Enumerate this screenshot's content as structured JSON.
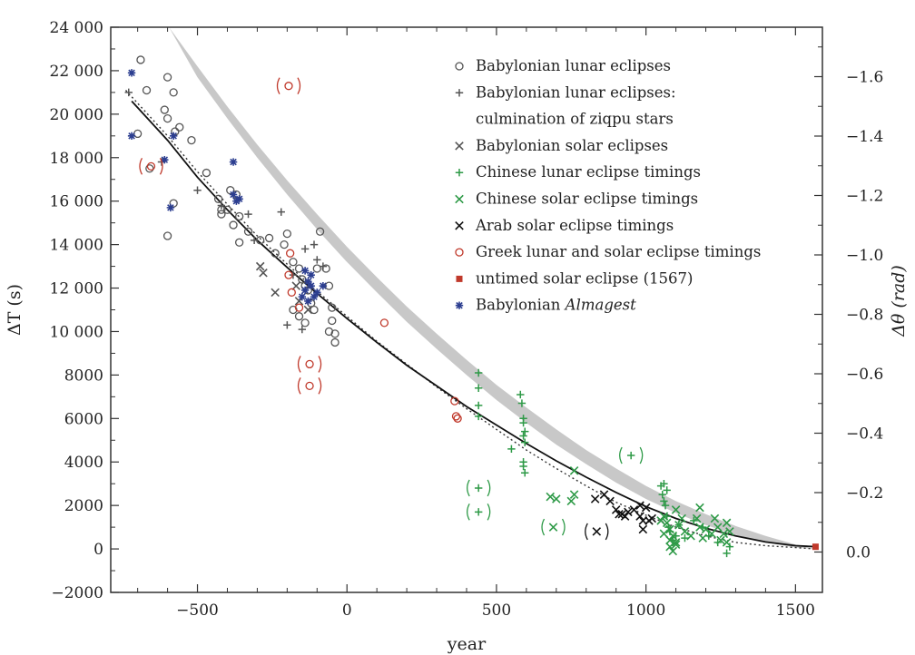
{
  "chart_data": {
    "type": "scatter",
    "xlabel": "year",
    "ylabel": "ΔT (s)",
    "y2label": "Δθ (rad)",
    "xlim": [
      -790,
      1590
    ],
    "ylim": [
      -2000,
      24000
    ],
    "y2lim": [
      0.1359,
      -1.7664
    ],
    "x_ticks": [
      -500,
      0,
      500,
      1000,
      1500
    ],
    "x_tick_labels": [
      "−500",
      "0",
      "500",
      "1000",
      "1500"
    ],
    "y_ticks": [
      -2000,
      0,
      2000,
      4000,
      6000,
      8000,
      10000,
      12000,
      14000,
      16000,
      18000,
      20000,
      22000,
      24000
    ],
    "y_tick_labels": [
      "−2000",
      "0",
      "2000",
      "4000",
      "6000",
      "8000",
      "10 000",
      "12 000",
      "14 000",
      "16 000",
      "18 000",
      "20 000",
      "22 000",
      "24 000"
    ],
    "y2_ticks": [
      0.0,
      -0.2,
      -0.4,
      -0.6,
      -0.8,
      -1.0,
      -1.2,
      -1.4,
      -1.6
    ],
    "y2_tick_labels": [
      "0.0",
      "−0.2",
      "−0.4",
      "−0.6",
      "−0.8",
      "−1.0",
      "−1.2",
      "−1.4",
      "−1.6"
    ],
    "grid": false,
    "legend_position": "top-right",
    "fit_curve": {
      "style": "solid",
      "color": "#111111",
      "x": [
        -720,
        -600,
        -500,
        -400,
        -300,
        -200,
        -100,
        0,
        100,
        200,
        300,
        400,
        500,
        600,
        700,
        800,
        900,
        1000,
        1100,
        1200,
        1300,
        1400,
        1500,
        1570
      ],
      "y": [
        20600,
        18800,
        17100,
        15600,
        14200,
        12950,
        11750,
        10600,
        9500,
        8450,
        7500,
        6550,
        5700,
        4850,
        4050,
        3300,
        2600,
        1950,
        1400,
        950,
        600,
        320,
        150,
        100
      ]
    },
    "dotted_curve": {
      "style": "dotted",
      "color": "#333333",
      "x": [
        -740,
        -600,
        -500,
        -400,
        -300,
        -200,
        -100,
        0,
        100,
        200,
        300,
        400,
        500,
        600,
        700,
        800,
        900,
        1000,
        1100,
        1200,
        1300,
        1400,
        1500,
        1570
      ],
      "y": [
        21100,
        19000,
        17350,
        15850,
        14400,
        13100,
        11850,
        10700,
        9550,
        8500,
        7450,
        6450,
        5500,
        4550,
        3700,
        2900,
        2150,
        1550,
        1000,
        600,
        300,
        150,
        60,
        0
      ]
    },
    "shaded_band": {
      "color": "#c8c8c8",
      "x": [
        -595,
        -500,
        -400,
        -300,
        -200,
        -100,
        0,
        100,
        200,
        300,
        400,
        500,
        600,
        700,
        800,
        900,
        1000,
        1100,
        1200,
        1300,
        1400,
        1500,
        1570
      ],
      "upper": [
        24000,
        22200,
        20350,
        18600,
        16950,
        15400,
        13900,
        12500,
        11150,
        9900,
        8700,
        7550,
        6500,
        5500,
        4550,
        3700,
        2900,
        2200,
        1600,
        1050,
        600,
        200,
        0
      ],
      "lower": [
        24000,
        21700,
        19800,
        18000,
        16300,
        14700,
        13200,
        11800,
        10450,
        9200,
        8000,
        6850,
        5800,
        4800,
        3900,
        3050,
        2300,
        1650,
        1100,
        650,
        300,
        60,
        0
      ]
    },
    "series": [
      {
        "name": "Babylonian lunar eclipses",
        "marker": "circle",
        "color": "#555555",
        "points": [
          [
            -690,
            22500
          ],
          [
            -670,
            21100
          ],
          [
            -600,
            21700
          ],
          [
            -580,
            21000
          ],
          [
            -575,
            19200
          ],
          [
            -560,
            19400
          ],
          [
            -520,
            18800
          ],
          [
            -700,
            19100
          ],
          [
            -660,
            17500
          ],
          [
            -610,
            20200
          ],
          [
            -600,
            19800
          ],
          [
            -470,
            17300
          ],
          [
            -430,
            16100
          ],
          [
            -420,
            15600
          ],
          [
            -390,
            16500
          ],
          [
            -370,
            16300
          ],
          [
            -360,
            15300
          ],
          [
            -380,
            14900
          ],
          [
            -360,
            14100
          ],
          [
            -330,
            14600
          ],
          [
            -290,
            14200
          ],
          [
            -260,
            14300
          ],
          [
            -240,
            13600
          ],
          [
            -210,
            14000
          ],
          [
            -200,
            14500
          ],
          [
            -180,
            13200
          ],
          [
            -160,
            12900
          ],
          [
            -150,
            12400
          ],
          [
            -140,
            12100
          ],
          [
            -130,
            11900
          ],
          [
            -120,
            11300
          ],
          [
            -110,
            11000
          ],
          [
            -100,
            12900
          ],
          [
            -90,
            14600
          ],
          [
            -70,
            12900
          ],
          [
            -60,
            12100
          ],
          [
            -50,
            11100
          ],
          [
            -50,
            10500
          ],
          [
            -60,
            10000
          ],
          [
            -40,
            9900
          ],
          [
            -40,
            9500
          ],
          [
            -580,
            15900
          ],
          [
            -600,
            14400
          ],
          [
            -400,
            15600
          ],
          [
            -420,
            15400
          ],
          [
            -180,
            11000
          ],
          [
            -160,
            10700
          ],
          [
            -140,
            10400
          ]
        ]
      },
      {
        "name": "Babylonian lunar eclipses: culmination of ziqpu stars",
        "marker": "plus",
        "color": "#555555",
        "points": [
          [
            -730,
            21000
          ],
          [
            -620,
            17800
          ],
          [
            -500,
            16500
          ],
          [
            -420,
            15800
          ],
          [
            -330,
            15400
          ],
          [
            -310,
            14200
          ],
          [
            -220,
            15500
          ],
          [
            -180,
            12600
          ],
          [
            -140,
            13800
          ],
          [
            -110,
            14000
          ],
          [
            -100,
            13300
          ],
          [
            -80,
            13000
          ],
          [
            -200,
            10300
          ],
          [
            -150,
            10100
          ]
        ]
      },
      {
        "name": "Babylonian solar eclipses",
        "marker": "x",
        "color": "#555555",
        "points": [
          [
            -290,
            13000
          ],
          [
            -280,
            12700
          ],
          [
            -240,
            11800
          ],
          [
            -170,
            12100
          ],
          [
            -160,
            11400
          ],
          [
            -130,
            11000
          ]
        ]
      },
      {
        "name": "Chinese lunar eclipse timings",
        "marker": "plus",
        "color": "#2e9a47",
        "points": [
          [
            440,
            8100
          ],
          [
            440,
            7400
          ],
          [
            440,
            6600
          ],
          [
            440,
            6100
          ],
          [
            550,
            4600
          ],
          [
            580,
            7100
          ],
          [
            585,
            6700
          ],
          [
            590,
            6000
          ],
          [
            590,
            5800
          ],
          [
            595,
            5400
          ],
          [
            590,
            5200
          ],
          [
            595,
            4900
          ],
          [
            590,
            4000
          ],
          [
            590,
            3800
          ],
          [
            595,
            3500
          ],
          [
            1050,
            2900
          ],
          [
            1055,
            2500
          ],
          [
            1060,
            2200
          ],
          [
            1065,
            2000
          ],
          [
            1070,
            1500
          ],
          [
            1075,
            1000
          ],
          [
            1080,
            800
          ],
          [
            1090,
            400
          ],
          [
            1100,
            600
          ],
          [
            1110,
            1100
          ],
          [
            1130,
            500
          ],
          [
            1160,
            1300
          ],
          [
            1190,
            1000
          ],
          [
            1210,
            600
          ],
          [
            1240,
            300
          ],
          [
            1270,
            -200
          ],
          [
            1280,
            100
          ],
          [
            1060,
            3000
          ],
          [
            1070,
            2700
          ]
        ]
      },
      {
        "name": "Chinese solar eclipse timings",
        "marker": "x",
        "color": "#2e9a47",
        "points": [
          [
            680,
            2400
          ],
          [
            700,
            2300
          ],
          [
            750,
            2200
          ],
          [
            760,
            2500
          ],
          [
            760,
            3600
          ],
          [
            1050,
            1300
          ],
          [
            1060,
            1500
          ],
          [
            1060,
            700
          ],
          [
            1070,
            1200
          ],
          [
            1080,
            900
          ],
          [
            1080,
            400
          ],
          [
            1090,
            600
          ],
          [
            1100,
            300
          ],
          [
            1100,
            1800
          ],
          [
            1110,
            1100
          ],
          [
            1120,
            1400
          ],
          [
            1130,
            800
          ],
          [
            1150,
            600
          ],
          [
            1170,
            1400
          ],
          [
            1180,
            1000
          ],
          [
            1180,
            1900
          ],
          [
            1190,
            500
          ],
          [
            1200,
            900
          ],
          [
            1220,
            700
          ],
          [
            1230,
            1400
          ],
          [
            1240,
            1000
          ],
          [
            1250,
            400
          ],
          [
            1260,
            700
          ],
          [
            1270,
            300
          ],
          [
            1280,
            800
          ],
          [
            1270,
            1200
          ],
          [
            1080,
            100
          ],
          [
            1090,
            -100
          ],
          [
            1100,
            200
          ]
        ]
      },
      {
        "name": "Arab solar eclipse timings",
        "marker": "x",
        "color": "#111111",
        "points": [
          [
            830,
            2300
          ],
          [
            860,
            2500
          ],
          [
            880,
            2200
          ],
          [
            900,
            1800
          ],
          [
            910,
            1600
          ],
          [
            920,
            1600
          ],
          [
            930,
            1500
          ],
          [
            940,
            1700
          ],
          [
            960,
            1800
          ],
          [
            980,
            2000
          ],
          [
            980,
            1500
          ],
          [
            990,
            1300
          ],
          [
            990,
            900
          ],
          [
            1000,
            1900
          ],
          [
            1010,
            1300
          ],
          [
            1020,
            1400
          ]
        ]
      },
      {
        "name": "Greek lunar and solar eclipse timings",
        "marker": "circle",
        "color": "#c0392b",
        "points": [
          [
            -190,
            13600
          ],
          [
            -195,
            12600
          ],
          [
            -185,
            11800
          ],
          [
            -160,
            11100
          ],
          [
            125,
            10400
          ],
          [
            360,
            6800
          ],
          [
            365,
            6100
          ],
          [
            370,
            6000
          ]
        ]
      },
      {
        "name": "untimed solar eclipse (1567)",
        "marker": "square",
        "color": "#c0392b",
        "points": [
          [
            1567,
            100
          ]
        ]
      },
      {
        "name": "Babylonian Almagest",
        "marker": "asterisk",
        "color": "#2c3e90",
        "points": [
          [
            -720,
            21900
          ],
          [
            -720,
            19000
          ],
          [
            -610,
            17900
          ],
          [
            -580,
            19000
          ],
          [
            -590,
            15700
          ],
          [
            -380,
            17800
          ],
          [
            -380,
            16300
          ],
          [
            -370,
            16000
          ],
          [
            -360,
            16100
          ],
          [
            -140,
            12800
          ],
          [
            -130,
            12300
          ],
          [
            -120,
            12100
          ],
          [
            -110,
            11600
          ],
          [
            -100,
            11800
          ],
          [
            -80,
            12100
          ],
          [
            -150,
            11600
          ],
          [
            -140,
            11900
          ],
          [
            -130,
            11400
          ],
          [
            -120,
            12600
          ]
        ]
      }
    ],
    "bracketed_points": [
      {
        "marker": "circle",
        "color": "#c0392b",
        "x": -195,
        "y": 21300
      },
      {
        "marker": "circle",
        "color": "#c0392b",
        "x": -655,
        "y": 17600
      },
      {
        "marker": "circle",
        "color": "#c0392b",
        "x": -125,
        "y": 8500
      },
      {
        "marker": "circle",
        "color": "#c0392b",
        "x": -125,
        "y": 7500
      },
      {
        "marker": "plus",
        "color": "#2e9a47",
        "x": 440,
        "y": 2800
      },
      {
        "marker": "plus",
        "color": "#2e9a47",
        "x": 440,
        "y": 1700
      },
      {
        "marker": "plus",
        "color": "#2e9a47",
        "x": 950,
        "y": 4300
      },
      {
        "marker": "x",
        "color": "#2e9a47",
        "x": 690,
        "y": 1000
      },
      {
        "marker": "x",
        "color": "#111111",
        "x": 835,
        "y": 800
      }
    ],
    "legend": [
      {
        "label": "Babylonian lunar eclipses",
        "marker": "circle",
        "color": "#555555"
      },
      {
        "label": "Babylonian lunar eclipses:",
        "marker": "plus",
        "color": "#555555"
      },
      {
        "label": "culmination of ziqpu stars",
        "marker": "none",
        "color": "#555555"
      },
      {
        "label": "Babylonian solar eclipses",
        "marker": "x",
        "color": "#555555"
      },
      {
        "label": "Chinese lunar eclipse timings",
        "marker": "plus",
        "color": "#2e9a47"
      },
      {
        "label": "Chinese solar eclipse timings",
        "marker": "x",
        "color": "#2e9a47"
      },
      {
        "label": "Arab solar eclipse timings",
        "marker": "x",
        "color": "#111111"
      },
      {
        "label": "Greek lunar and solar eclipse timings",
        "marker": "circle",
        "color": "#c0392b"
      },
      {
        "label": "untimed solar eclipse (1567)",
        "marker": "square",
        "color": "#c0392b"
      },
      {
        "label": "Babylonian ",
        "label_italic": "Almagest",
        "marker": "asterisk",
        "color": "#2c3e90"
      }
    ]
  }
}
